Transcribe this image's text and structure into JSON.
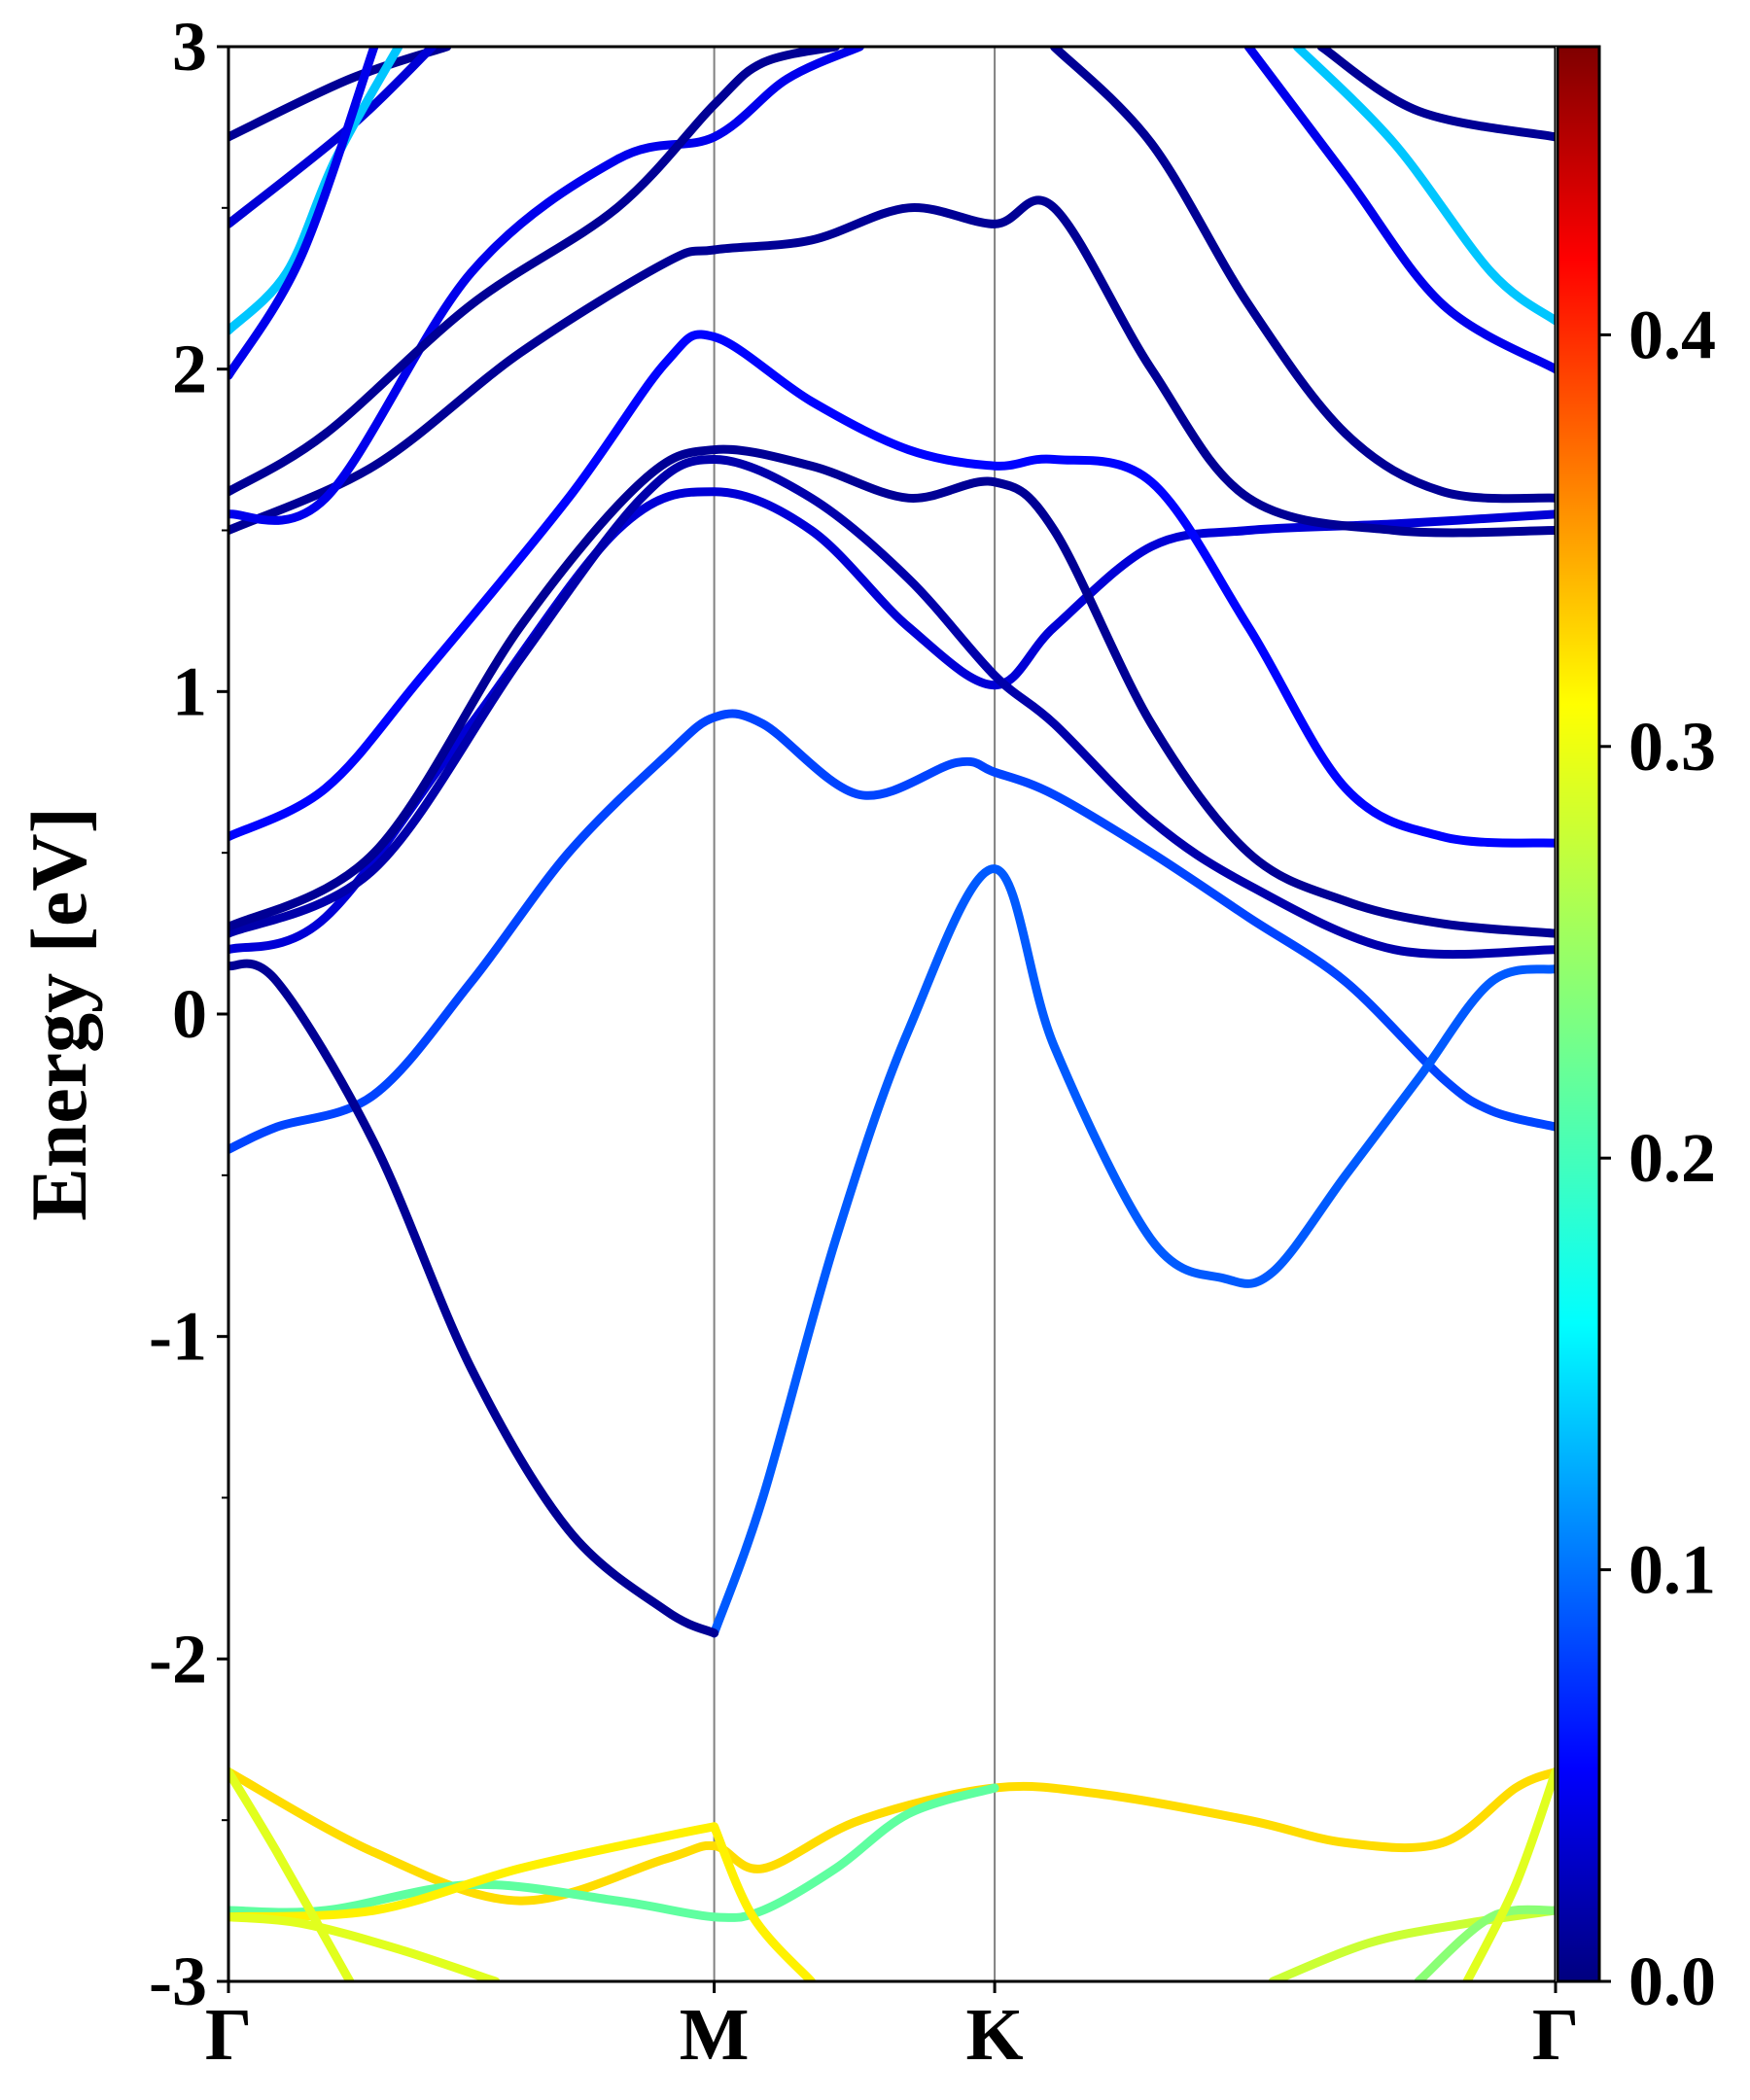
{
  "chart_data": {
    "type": "line",
    "title": "",
    "xlabel": "",
    "ylabel": "Energy [eV]",
    "ylim": [
      -3,
      3
    ],
    "yticks": [
      "-3",
      "-2",
      "-1",
      "0",
      "1",
      "2",
      "3"
    ],
    "k_path": {
      "labels": [
        "Γ",
        "M",
        "K",
        "Γ"
      ],
      "positions": [
        0,
        1,
        1.5774,
        2.7321
      ]
    },
    "grid": false,
    "colorbar": {
      "colormap": "jet",
      "range": [
        0.0,
        0.47
      ],
      "ticks": [
        "0.0",
        "0.1",
        "0.2",
        "0.3",
        "0.4"
      ],
      "tick_values": [
        0.0,
        0.1,
        0.2,
        0.3,
        0.4
      ]
    },
    "series": [
      {
        "weight": 0.09,
        "x": [
          0,
          0.1,
          0.3,
          0.5,
          0.7,
          0.9,
          1,
          1.1,
          1.3,
          1.5,
          1.5774,
          1.7,
          1.9,
          2.1,
          2.3,
          2.5,
          2.6,
          2.7321
        ],
        "y": [
          -0.42,
          -0.35,
          -0.25,
          0.1,
          0.5,
          0.8,
          0.92,
          0.9,
          0.68,
          0.78,
          0.75,
          0.68,
          0.5,
          0.3,
          0.1,
          -0.2,
          -0.3,
          -0.35
        ]
      },
      {
        "weight": 0.1,
        "x": [
          1,
          1.1,
          1.25,
          1.4,
          1.5774,
          1.7,
          1.9,
          2.05,
          2.15,
          2.3,
          2.45,
          2.6,
          2.7321
        ],
        "y": [
          -1.92,
          -1.5,
          -0.7,
          -0.05,
          0.45,
          -0.1,
          -0.7,
          -0.82,
          -0.8,
          -0.5,
          -0.2,
          0.1,
          0.14
        ]
      },
      {
        "weight": 0.01,
        "x": [
          0,
          0.1,
          0.3,
          0.5,
          0.7,
          0.9,
          1
        ],
        "y": [
          0.15,
          0.1,
          -0.4,
          -1.1,
          -1.6,
          -1.85,
          -1.92
        ]
      },
      {
        "weight": 0.04,
        "x": [
          0,
          0.2,
          0.5,
          0.8,
          1,
          1.2,
          1.4,
          1.5774,
          1.7,
          1.9,
          2.1,
          2.4,
          2.7321
        ],
        "y": [
          0.2,
          0.3,
          0.9,
          1.5,
          1.62,
          1.5,
          1.2,
          1.02,
          1.2,
          1.45,
          1.5,
          1.52,
          1.55
        ]
      },
      {
        "weight": 0.02,
        "x": [
          0,
          0.3,
          0.6,
          0.85,
          1,
          1.2,
          1.4,
          1.5774,
          1.7,
          1.9,
          2.1,
          2.4,
          2.7321
        ],
        "y": [
          0.25,
          0.45,
          1.1,
          1.6,
          1.72,
          1.6,
          1.35,
          1.05,
          0.9,
          0.6,
          0.4,
          0.2,
          0.2
        ]
      },
      {
        "weight": 0.01,
        "x": [
          0,
          0.3,
          0.6,
          0.85,
          1,
          1.2,
          1.4,
          1.5774,
          1.7,
          1.9,
          2.1,
          2.3,
          2.5,
          2.7321
        ],
        "y": [
          0.27,
          0.5,
          1.2,
          1.65,
          1.75,
          1.7,
          1.6,
          1.65,
          1.5,
          0.9,
          0.5,
          0.35,
          0.28,
          0.25
        ]
      },
      {
        "weight": 0.06,
        "x": [
          0,
          0.2,
          0.4,
          0.7,
          0.9,
          1,
          1.2,
          1.4,
          1.5774,
          1.7,
          1.9,
          2.1,
          2.3,
          2.5,
          2.7321
        ],
        "y": [
          0.55,
          0.7,
          1.05,
          1.6,
          2.02,
          2.1,
          1.9,
          1.75,
          1.7,
          1.72,
          1.65,
          1.2,
          0.7,
          0.55,
          0.53
        ]
      },
      {
        "weight": 0.01,
        "x": [
          0,
          0.3,
          0.6,
          0.9,
          1,
          1.2,
          1.4,
          1.5774,
          1.7,
          1.9,
          2.1,
          2.4,
          2.7321
        ],
        "y": [
          1.5,
          1.7,
          2.05,
          2.33,
          2.37,
          2.4,
          2.5,
          2.45,
          2.5,
          2.0,
          1.6,
          1.5,
          1.5
        ]
      },
      {
        "weight": 0.05,
        "x": [
          0,
          0.2,
          0.5,
          0.8,
          1,
          1.15,
          1.3
        ],
        "y": [
          1.55,
          1.6,
          2.3,
          2.65,
          2.72,
          2.9,
          3.0
        ]
      },
      {
        "weight": 0.01,
        "x": [
          0,
          0.2,
          0.5,
          0.8,
          1,
          1.1,
          1.25
        ],
        "y": [
          1.62,
          1.8,
          2.2,
          2.5,
          2.82,
          2.95,
          3.0
        ]
      },
      {
        "weight": 0.01,
        "x": [
          0,
          0.25,
          0.45
        ],
        "y": [
          2.72,
          2.9,
          3.0
        ]
      },
      {
        "weight": 0.04,
        "x": [
          0,
          0.25,
          0.42
        ],
        "y": [
          2.45,
          2.75,
          3.0
        ]
      },
      {
        "weight": 0.15,
        "x": [
          0,
          0.12,
          0.22,
          0.35
        ],
        "y": [
          2.12,
          2.3,
          2.65,
          3.0
        ]
      },
      {
        "weight": 0.05,
        "x": [
          0,
          0.15,
          0.3
        ],
        "y": [
          1.98,
          2.35,
          3.0
        ]
      },
      {
        "weight": 0.01,
        "x": [
          1.7,
          1.9,
          2.1,
          2.3,
          2.5,
          2.7321
        ],
        "y": [
          3.0,
          2.7,
          2.2,
          1.8,
          1.62,
          1.6
        ]
      },
      {
        "weight": 0.15,
        "x": [
          2.2,
          2.4,
          2.6,
          2.7321
        ],
        "y": [
          3.0,
          2.7,
          2.3,
          2.15
        ]
      },
      {
        "weight": 0.05,
        "x": [
          2.1,
          2.3,
          2.5,
          2.7321
        ],
        "y": [
          3.0,
          2.6,
          2.2,
          2.0
        ]
      },
      {
        "weight": 0.01,
        "x": [
          2.25,
          2.45,
          2.7321
        ],
        "y": [
          3.0,
          2.8,
          2.72
        ]
      },
      {
        "weight": 0.31,
        "x": [
          0,
          0.3,
          0.6,
          0.9,
          1,
          1.1,
          1.3,
          1.5774,
          1.8,
          2.1,
          2.3,
          2.5,
          2.65,
          2.7321
        ],
        "y": [
          -2.35,
          -2.6,
          -2.75,
          -2.62,
          -2.58,
          -2.65,
          -2.5,
          -2.4,
          -2.42,
          -2.5,
          -2.57,
          -2.57,
          -2.4,
          -2.35
        ]
      },
      {
        "weight": 0.22,
        "x": [
          0,
          0.2,
          0.5,
          0.8,
          1,
          1.1,
          1.25,
          1.4,
          1.5774
        ],
        "y": [
          -2.78,
          -2.78,
          -2.7,
          -2.75,
          -2.8,
          -2.78,
          -2.65,
          -2.48,
          -2.4
        ]
      },
      {
        "weight": 0.3,
        "x": [
          0,
          0.3,
          0.6,
          0.9,
          1
        ],
        "y": [
          -2.8,
          -2.78,
          -2.65,
          -2.55,
          -2.52
        ]
      },
      {
        "weight": 0.28,
        "x": [
          0,
          0.1,
          0.25
        ],
        "y": [
          -2.35,
          -2.6,
          -3.0
        ]
      },
      {
        "weight": 0.28,
        "x": [
          0,
          0.15,
          0.35,
          0.55
        ],
        "y": [
          -2.8,
          -2.82,
          -2.9,
          -3.0
        ]
      },
      {
        "weight": 0.3,
        "x": [
          1,
          1.08,
          1.2
        ],
        "y": [
          -2.52,
          -2.8,
          -3.0
        ]
      },
      {
        "weight": 0.27,
        "x": [
          2.15,
          2.35,
          2.55,
          2.7321
        ],
        "y": [
          -3.0,
          -2.88,
          -2.82,
          -2.78
        ]
      },
      {
        "weight": 0.24,
        "x": [
          2.45,
          2.6,
          2.7321
        ],
        "y": [
          -3.0,
          -2.8,
          -2.78
        ]
      },
      {
        "weight": 0.28,
        "x": [
          2.55,
          2.65,
          2.7321
        ],
        "y": [
          -3.0,
          -2.7,
          -2.35
        ]
      }
    ]
  }
}
